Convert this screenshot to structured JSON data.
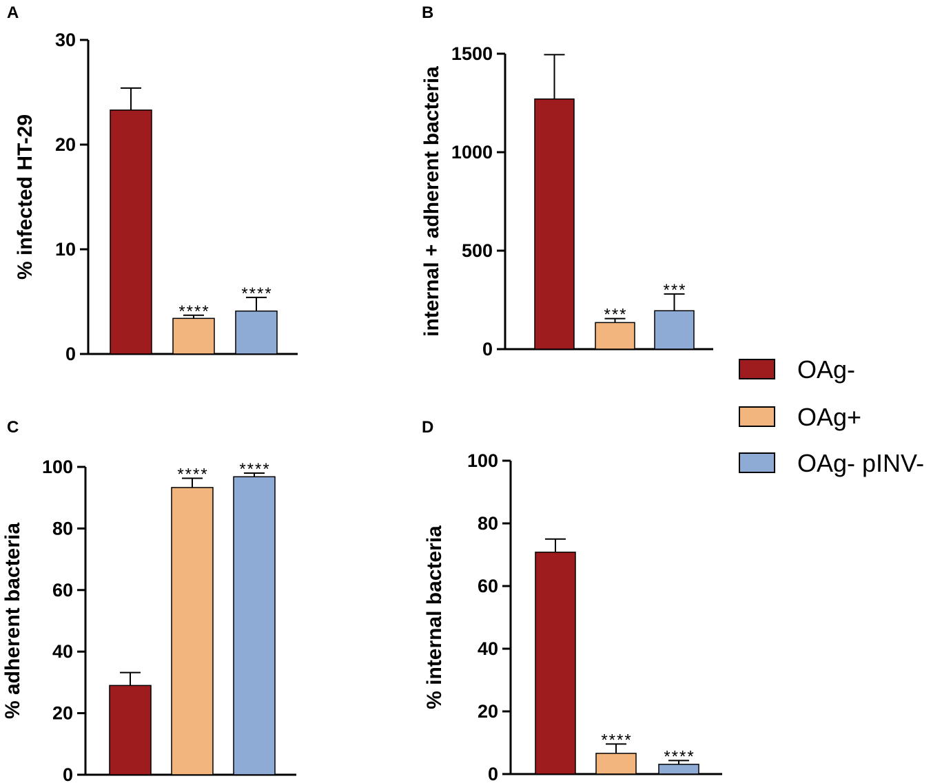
{
  "colors": {
    "OAg-": "#9e1b1e",
    "OAg+": "#f3b57e",
    "OAg- pINV-": "#8eabd6",
    "axis": "#000000"
  },
  "legend": {
    "entries": [
      "OAg-",
      "OAg+",
      "OAg- pINV-"
    ]
  },
  "chart_data": [
    {
      "panel": "A",
      "type": "bar",
      "categories": [
        "OAg-",
        "OAg+",
        "OAg- pINV-"
      ],
      "values": [
        23.3,
        3.4,
        4.1
      ],
      "errors": [
        2.1,
        0.3,
        1.3
      ],
      "significance": [
        "",
        "****",
        "****"
      ],
      "ylabel": "% infected HT-29",
      "xlabel": "",
      "ylim": [
        0,
        30
      ],
      "yticks": [
        0,
        10,
        20,
        30
      ]
    },
    {
      "panel": "B",
      "type": "bar",
      "categories": [
        "OAg-",
        "OAg+",
        "OAg- pINV-"
      ],
      "values": [
        1270,
        135,
        195
      ],
      "errors": [
        225,
        20,
        85
      ],
      "significance": [
        "",
        "***",
        "***"
      ],
      "ylabel": "internal + adherent bacteria",
      "xlabel": "",
      "ylim": [
        0,
        1500
      ],
      "yticks": [
        0,
        500,
        1000,
        1500
      ]
    },
    {
      "panel": "C",
      "type": "bar",
      "categories": [
        "OAg-",
        "OAg+",
        "OAg- pINV-"
      ],
      "values": [
        29,
        93.3,
        96.8
      ],
      "errors": [
        4.2,
        3.0,
        1.2
      ],
      "significance": [
        "",
        "****",
        "****"
      ],
      "ylabel": "% adherent bacteria",
      "xlabel": "",
      "ylim": [
        0,
        100
      ],
      "yticks": [
        0,
        20,
        40,
        60,
        80,
        100
      ]
    },
    {
      "panel": "D",
      "type": "bar",
      "categories": [
        "OAg-",
        "OAg+",
        "OAg- pINV-"
      ],
      "values": [
        70.8,
        6.6,
        3.1
      ],
      "errors": [
        4.2,
        3.0,
        1.2
      ],
      "significance": [
        "",
        "****",
        "****"
      ],
      "ylabel": "% internal bacteria",
      "xlabel": "",
      "ylim": [
        0,
        100
      ],
      "yticks": [
        0,
        20,
        40,
        60,
        80,
        100
      ]
    }
  ]
}
